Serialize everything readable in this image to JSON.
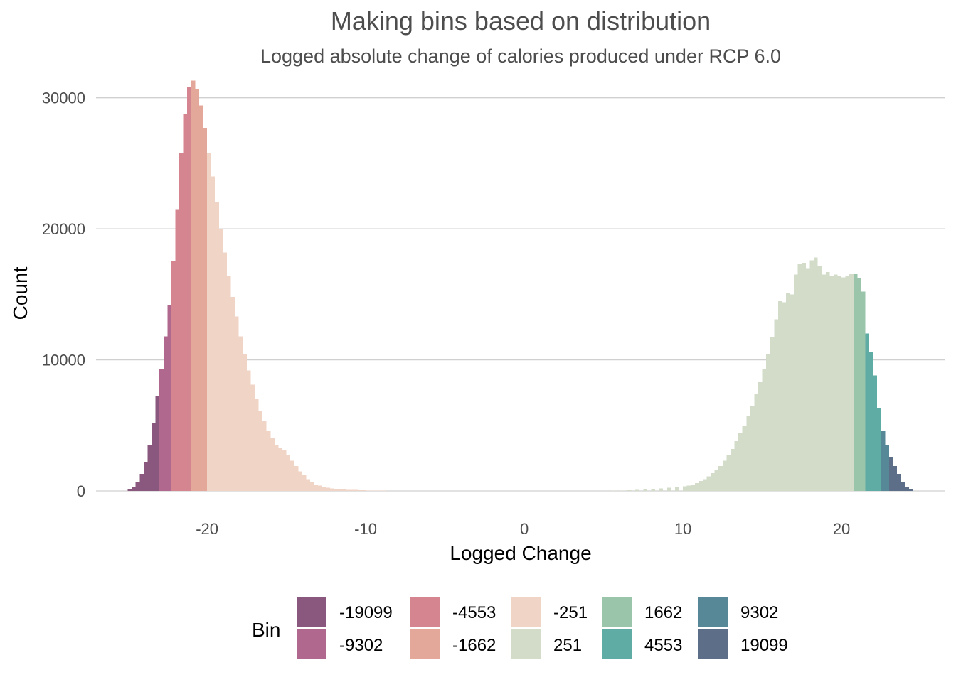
{
  "chart_data": {
    "type": "bar",
    "title": "Making bins based on distribution",
    "subtitle": "Logged absolute change of calories produced under RCP 6.0",
    "xlabel": "Logged Change",
    "ylabel": "Count",
    "xlim": [
      -27,
      26.5
    ],
    "ylim": [
      0,
      31500
    ],
    "xticks": [
      "-20",
      "-10",
      "0",
      "10",
      "20"
    ],
    "yticks": [
      "0",
      "10000",
      "20000",
      "30000"
    ],
    "grid": "horizontal",
    "legend": {
      "title": "Bin",
      "position": "bottom",
      "entries": [
        {
          "label": "-19099",
          "color": "#8a587f"
        },
        {
          "label": "-9302",
          "color": "#b0688f"
        },
        {
          "label": "-4553",
          "color": "#d4858f"
        },
        {
          "label": "-1662",
          "color": "#e4a89b"
        },
        {
          "label": "-251",
          "color": "#f0d4c6"
        },
        {
          "label": "251",
          "color": "#d2dcc8"
        },
        {
          "label": "1662",
          "color": "#9ac5ab"
        },
        {
          "label": "4553",
          "color": "#5eaca3"
        },
        {
          "label": "9302",
          "color": "#568898"
        },
        {
          "label": "19099",
          "color": "#5d6f88"
        }
      ]
    },
    "bin_width": 0.25,
    "series": [
      {
        "bin": "-19099",
        "x": [
          -25.0,
          -24.75,
          -24.5,
          -24.25,
          -24.0,
          -23.75,
          -23.5,
          -23.25
        ],
        "values": [
          100,
          300,
          700,
          1300,
          2200,
          3500,
          5200,
          7200
        ]
      },
      {
        "bin": "-9302",
        "x": [
          -23.0,
          -22.75,
          -22.5
        ],
        "values": [
          9300,
          11800,
          14200
        ]
      },
      {
        "bin": "-4553",
        "x": [
          -22.25,
          -22.0,
          -21.75,
          -21.5,
          -21.25
        ],
        "values": [
          17500,
          21500,
          25800,
          28800,
          30800
        ]
      },
      {
        "bin": "-1662",
        "x": [
          -21.0,
          -20.75,
          -20.5,
          -20.25
        ],
        "values": [
          31300,
          30700,
          29400,
          27700
        ]
      },
      {
        "bin": "-251",
        "x": [
          -20.0,
          -19.75,
          -19.5,
          -19.25,
          -19.0,
          -18.75,
          -18.5,
          -18.25,
          -18.0,
          -17.75,
          -17.5,
          -17.25,
          -17.0,
          -16.75,
          -16.5,
          -16.25,
          -16.0,
          -15.75,
          -15.5,
          -15.25,
          -15.0,
          -14.75,
          -14.5,
          -14.25,
          -14.0,
          -13.75,
          -13.5,
          -13.25,
          -13.0,
          -12.75,
          -12.5,
          -12.25,
          -12.0,
          -11.75,
          -11.5,
          -11.25,
          -11.0,
          -10.75,
          -10.5,
          -10.25,
          -10.0,
          -9.75,
          -9.5,
          -9.25,
          -9.0,
          -8.5,
          -8.0,
          -7.5,
          -7.0,
          -6.5,
          -6.0,
          -5.0,
          -4.0,
          -3.0,
          -2.0,
          -1.0,
          0.0,
          1.0,
          2.0,
          3.0,
          4.0,
          5.0
        ],
        "values": [
          25800,
          24000,
          22000,
          20000,
          18200,
          16400,
          14800,
          13300,
          11800,
          10400,
          9200,
          8100,
          7000,
          6100,
          5300,
          4600,
          4000,
          3500,
          3300,
          3100,
          2700,
          2300,
          1900,
          1500,
          1200,
          900,
          700,
          500,
          400,
          300,
          250,
          200,
          150,
          120,
          100,
          90,
          80,
          70,
          60,
          50,
          40,
          30,
          25,
          20,
          15,
          10,
          8,
          6,
          5,
          4,
          3,
          2,
          2,
          2,
          2,
          2,
          2,
          2,
          2,
          2,
          2,
          3
        ]
      },
      {
        "bin": "251",
        "x": [
          5.5,
          6.0,
          6.5,
          7.0,
          7.5,
          8.0,
          8.5,
          9.0,
          9.5,
          10.0,
          10.25,
          10.5,
          10.75,
          11.0,
          11.25,
          11.5,
          11.75,
          12.0,
          12.25,
          12.5,
          12.75,
          13.0,
          13.25,
          13.5,
          13.75,
          14.0,
          14.25,
          14.5,
          14.75,
          15.0,
          15.25,
          15.5,
          15.75,
          16.0,
          16.25,
          16.5,
          16.75,
          17.0,
          17.25,
          17.5,
          17.75,
          18.0,
          18.25,
          18.5,
          18.75,
          19.0,
          19.25,
          19.5,
          19.75,
          20.0,
          20.25,
          20.5
        ],
        "values": [
          20,
          40,
          60,
          80,
          100,
          150,
          200,
          250,
          300,
          350,
          400,
          500,
          600,
          750,
          900,
          1100,
          1350,
          1600,
          1900,
          2300,
          2700,
          3200,
          3800,
          4400,
          5000,
          5700,
          6500,
          7400,
          8300,
          9300,
          10400,
          11700,
          13100,
          14500,
          14400,
          15100,
          15000,
          16500,
          17300,
          17400,
          17000,
          17600,
          17800,
          17200,
          16500,
          16700,
          16400,
          16500,
          16400,
          16300,
          16400,
          16600
        ]
      },
      {
        "bin": "1662",
        "x": [
          20.75,
          21.0,
          21.25
        ],
        "values": [
          16600,
          16200,
          15200
        ]
      },
      {
        "bin": "4553",
        "x": [
          21.5,
          21.75,
          22.0,
          22.25
        ],
        "values": [
          12000,
          10600,
          8800,
          6300
        ]
      },
      {
        "bin": "9302",
        "x": [
          22.5,
          22.75
        ],
        "values": [
          4600,
          3500
        ]
      },
      {
        "bin": "19099",
        "x": [
          23.0,
          23.25,
          23.5,
          23.75,
          24.0,
          24.25
        ],
        "values": [
          2600,
          1900,
          1300,
          700,
          300,
          100
        ]
      }
    ]
  }
}
